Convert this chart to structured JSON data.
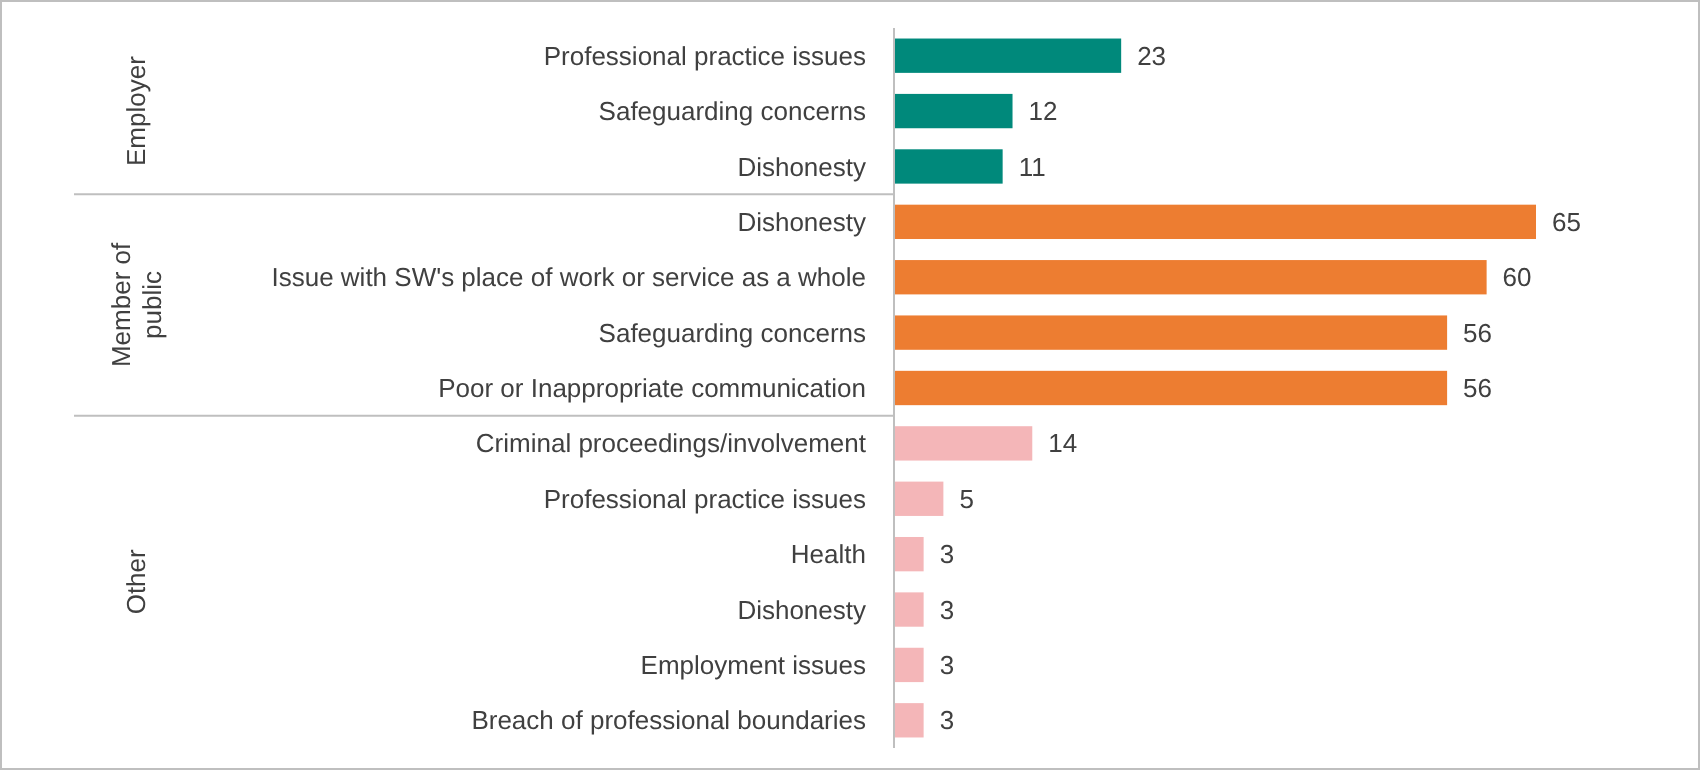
{
  "chart_data": {
    "type": "bar",
    "orientation": "horizontal",
    "data_labels": true,
    "categories": [
      "Professional practice issues",
      "Safeguarding concerns",
      "Dishonesty",
      "Dishonesty",
      "Issue with SW's place of work or service as a whole",
      "Safeguarding concerns",
      "Poor or Inappropriate communication",
      "Criminal proceedings/involvement",
      "Professional practice issues",
      "Health",
      "Dishonesty",
      "Employment issues",
      "Breach of professional boundaries"
    ],
    "values": [
      23,
      12,
      11,
      65,
      60,
      56,
      56,
      14,
      5,
      3,
      3,
      3,
      3
    ],
    "colors": [
      "#00897b",
      "#00897b",
      "#00897b",
      "#ed7d31",
      "#ed7d31",
      "#ed7d31",
      "#ed7d31",
      "#f4b6b8",
      "#f4b6b8",
      "#f4b6b8",
      "#f4b6b8",
      "#f4b6b8",
      "#f4b6b8"
    ],
    "annotations": [
      "Employer",
      "Member of public",
      "Other"
    ]
  }
}
